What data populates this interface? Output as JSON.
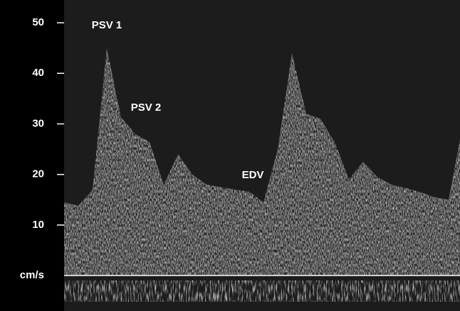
{
  "chart_data": {
    "type": "area",
    "annotations": [
      "PSV 1",
      "PSV 2",
      "EDV"
    ],
    "unit_label": "cm/s",
    "values": [
      14.5,
      13.8,
      17,
      45,
      31.3,
      28,
      26.4,
      18,
      24,
      20,
      18,
      17.5,
      17,
      16.6,
      14.5,
      25,
      44,
      32,
      31,
      26.4,
      19,
      22.5,
      19.5,
      18,
      17.3,
      16.5,
      15.5,
      15,
      30
    ],
    "color": "#d9d9d9",
    "ylim": [
      -7,
      54.5
    ],
    "yticks": [
      10,
      20,
      30,
      40,
      50
    ]
  }
}
